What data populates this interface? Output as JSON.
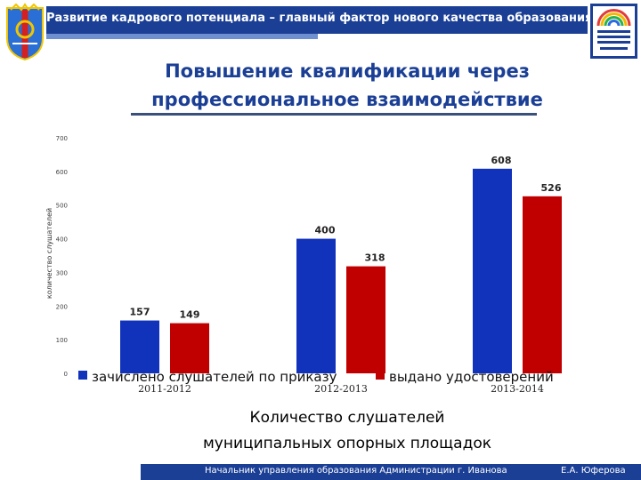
{
  "header": {
    "title": "Развитие кадрового потенциала – главный фактор нового качества образования",
    "band_color": "#1b3f95"
  },
  "icons": {
    "coat_of_arms": "coat-of-arms-icon",
    "department_logo": "department-logo-icon"
  },
  "slide": {
    "title_line1": "Повышение квалификации через",
    "title_line2": "профессиональное взаимодействие",
    "caption_line1": "Количество слушателей",
    "caption_line2": "муниципальных опорных площадок"
  },
  "footer": {
    "left": "Начальник управления образования Администрации  г. Иванова",
    "right": "Е.А. Юферова"
  },
  "chart_data": {
    "type": "bar",
    "categories": [
      "2011-2012",
      "2012-2013",
      "2013-2014"
    ],
    "series": [
      {
        "name": "зачислено слушателей по приказу",
        "values": [
          157,
          400,
          608
        ],
        "color": "#1133bb"
      },
      {
        "name": "выдано удостоверений",
        "values": [
          149,
          318,
          526
        ],
        "color": "#c00000"
      }
    ],
    "ylabel": "количество слушателей",
    "ylim": [
      0,
      700
    ],
    "yticks": [
      0,
      100,
      200,
      300,
      400,
      500,
      600,
      700
    ],
    "grid": false,
    "legend_position": "bottom"
  }
}
